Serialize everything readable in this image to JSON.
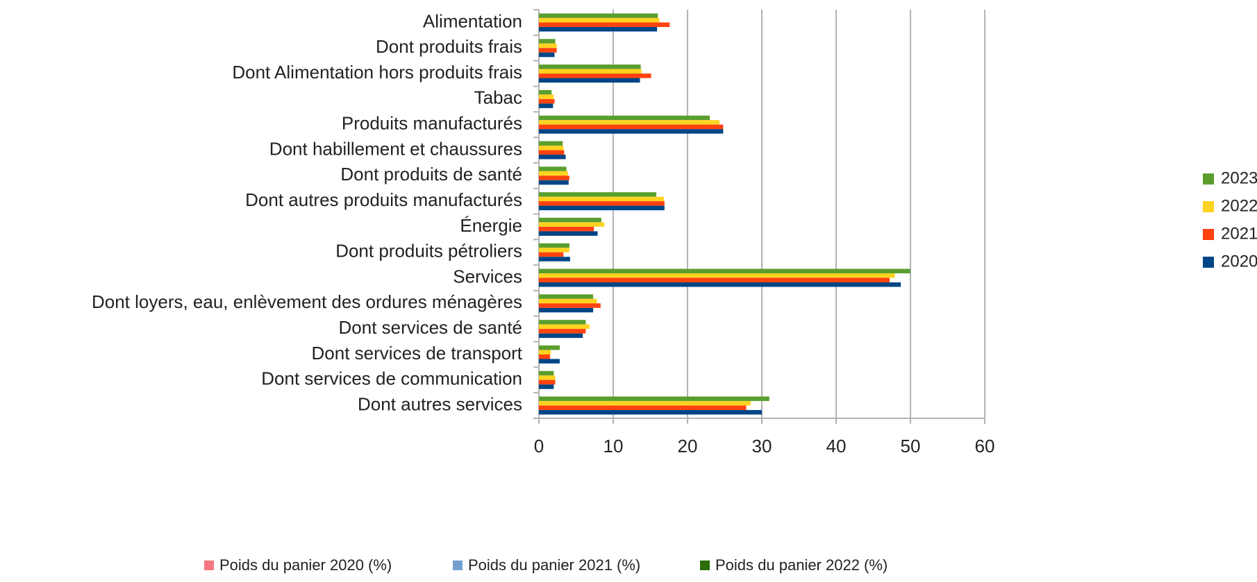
{
  "chart_data": {
    "type": "bar",
    "orientation": "horizontal",
    "categories": [
      "Alimentation",
      "Dont produits frais",
      "Dont Alimentation hors produits frais",
      "Tabac",
      "Produits manufacturés",
      "Dont habillement et chaussures",
      "Dont produits de santé",
      "Dont autres produits manufacturés",
      "Énergie",
      "Dont produits pétroliers",
      "Services",
      "Dont loyers, eau, enlèvement des ordures ménagères",
      "Dont services de santé",
      "Dont services de transport",
      "Dont services de communication",
      "Dont autres services"
    ],
    "series": [
      {
        "name": "2023",
        "color": "#5a9e2f",
        "values": [
          16,
          2.2,
          13.7,
          1.7,
          23,
          3.2,
          3.7,
          15.8,
          8.4,
          4.1,
          50,
          7.3,
          6.3,
          2.8,
          2.0,
          31
        ]
      },
      {
        "name": "2022",
        "color": "#ffd320",
        "values": [
          16.2,
          2.4,
          13.8,
          2.0,
          24.3,
          3.3,
          3.9,
          16.8,
          8.8,
          4.1,
          47.9,
          7.8,
          6.8,
          1.6,
          2.2,
          28.5
        ]
      },
      {
        "name": "2021",
        "color": "#ff420e",
        "values": [
          17.6,
          2.4,
          15.1,
          2.1,
          24.8,
          3.4,
          4.1,
          16.9,
          7.4,
          3.3,
          47.2,
          8.3,
          6.3,
          1.5,
          2.2,
          27.9
        ]
      },
      {
        "name": "2020",
        "color": "#004586",
        "values": [
          15.9,
          2.1,
          13.6,
          1.9,
          24.8,
          3.6,
          4.0,
          16.9,
          7.9,
          4.2,
          48.7,
          7.3,
          5.9,
          2.8,
          2.0,
          30.0
        ]
      }
    ],
    "xlim": [
      0,
      60
    ],
    "xticks": [
      0,
      10,
      20,
      30,
      40,
      50,
      60
    ],
    "grid": true,
    "legend": "right",
    "extra_legend": [
      {
        "name": "Poids du panier 2020 (%)",
        "color": "#f4777f"
      },
      {
        "name": "Poids du panier 2021 (%)",
        "color": "#729fcf"
      },
      {
        "name": "Poids du panier 2022 (%)",
        "color": "#2a6c09"
      }
    ]
  }
}
